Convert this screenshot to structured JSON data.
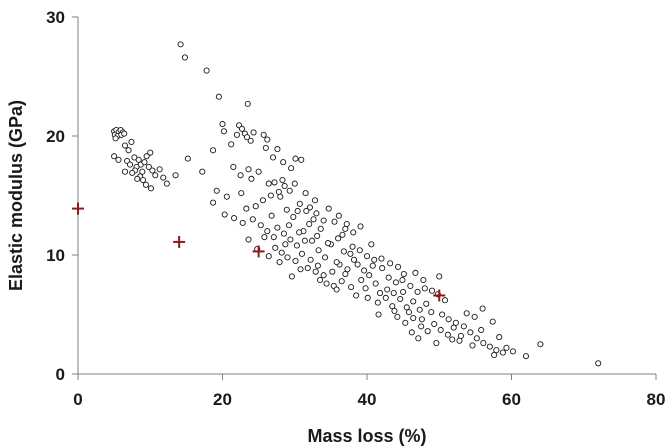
{
  "chart_data": {
    "type": "scatter",
    "title": "",
    "xlabel": "Mass loss (%)",
    "ylabel": "Elastic modulus (GPa)",
    "xlim": [
      0,
      80
    ],
    "ylim": [
      0,
      30
    ],
    "x_ticks": [
      0,
      20,
      40,
      60,
      80
    ],
    "y_ticks": [
      0,
      10,
      20,
      30
    ],
    "x_tick_labels": [
      "0",
      "20",
      "40",
      "60",
      "80"
    ],
    "y_tick_labels": [
      "0",
      "10",
      "20",
      "30"
    ],
    "grid": false,
    "legend": "none",
    "series": [
      {
        "marker": "open-circle",
        "color": "#1a1a1a",
        "points": [
          [
            5,
            20.4
          ],
          [
            5.3,
            20.5
          ],
          [
            5.6,
            20.3
          ],
          [
            5.9,
            20.5
          ],
          [
            6.2,
            20.3
          ],
          [
            5.1,
            20.1
          ],
          [
            5.5,
            20.0
          ],
          [
            6.0,
            20.1
          ],
          [
            6.4,
            20.2
          ],
          [
            5.2,
            19.8
          ],
          [
            5.0,
            18.3
          ],
          [
            5.6,
            18.0
          ],
          [
            6.5,
            19.2
          ],
          [
            7.0,
            18.8
          ],
          [
            7.4,
            19.5
          ],
          [
            6.8,
            17.9
          ],
          [
            7.8,
            18.2
          ],
          [
            8.1,
            17.4
          ],
          [
            8.4,
            18.0
          ],
          [
            8.7,
            17.6
          ],
          [
            8.9,
            17.0
          ],
          [
            9.2,
            17.8
          ],
          [
            9.5,
            18.3
          ],
          [
            7.2,
            17.6
          ],
          [
            7.9,
            17.1
          ],
          [
            8.6,
            16.6
          ],
          [
            9.0,
            16.3
          ],
          [
            9.8,
            17.4
          ],
          [
            10.3,
            17.1
          ],
          [
            10.7,
            16.7
          ],
          [
            11.3,
            17.2
          ],
          [
            11.8,
            16.5
          ],
          [
            12.3,
            16.0
          ],
          [
            9.4,
            15.9
          ],
          [
            10.1,
            15.6
          ],
          [
            6.5,
            17.0
          ],
          [
            7.5,
            16.9
          ],
          [
            8.2,
            16.4
          ],
          [
            13.5,
            16.7
          ],
          [
            10.0,
            18.6
          ],
          [
            14.2,
            27.7
          ],
          [
            14.8,
            26.6
          ],
          [
            17.8,
            25.5
          ],
          [
            19.5,
            23.3
          ],
          [
            20.0,
            21.0
          ],
          [
            20.2,
            20.4
          ],
          [
            23.5,
            22.7
          ],
          [
            15.2,
            18.1
          ],
          [
            17.2,
            17.0
          ],
          [
            18.7,
            18.8
          ],
          [
            21.2,
            19.3
          ],
          [
            22.0,
            20.1
          ],
          [
            22.3,
            20.9
          ],
          [
            22.7,
            20.6
          ],
          [
            23.1,
            20.2
          ],
          [
            23.4,
            19.9
          ],
          [
            23.9,
            19.6
          ],
          [
            24.3,
            20.3
          ],
          [
            25.7,
            20.1
          ],
          [
            26.2,
            19.7
          ],
          [
            27.0,
            18.2
          ],
          [
            27.6,
            18.9
          ],
          [
            26.0,
            19.0
          ],
          [
            28.4,
            17.8
          ],
          [
            30.1,
            18.1
          ],
          [
            30.9,
            18.0
          ],
          [
            29.5,
            17.3
          ],
          [
            21.5,
            17.4
          ],
          [
            22.5,
            16.7
          ],
          [
            23.6,
            17.2
          ],
          [
            19.2,
            15.4
          ],
          [
            20.6,
            14.9
          ],
          [
            18.7,
            14.4
          ],
          [
            20.3,
            13.4
          ],
          [
            21.6,
            13.1
          ],
          [
            22.6,
            15.2
          ],
          [
            24.0,
            16.4
          ],
          [
            25.0,
            17.0
          ],
          [
            26.4,
            16.0
          ],
          [
            27.2,
            16.1
          ],
          [
            27.8,
            15.3
          ],
          [
            26.7,
            15.0
          ],
          [
            25.6,
            14.6
          ],
          [
            24.6,
            14.1
          ],
          [
            23.3,
            13.9
          ],
          [
            22.8,
            12.7
          ],
          [
            24.2,
            13.0
          ],
          [
            25.3,
            12.5
          ],
          [
            26.2,
            12.0
          ],
          [
            27.1,
            11.5
          ],
          [
            28.0,
            14.9
          ],
          [
            28.6,
            15.8
          ],
          [
            29.3,
            15.4
          ],
          [
            30.0,
            16.0
          ],
          [
            28.9,
            13.8
          ],
          [
            29.8,
            13.2
          ],
          [
            30.7,
            14.3
          ],
          [
            31.5,
            15.2
          ],
          [
            32.1,
            14.0
          ],
          [
            33.0,
            13.5
          ],
          [
            27.6,
            12.3
          ],
          [
            28.5,
            11.8
          ],
          [
            29.4,
            11.3
          ],
          [
            30.3,
            10.8
          ],
          [
            31.2,
            12.0
          ],
          [
            32.0,
            12.6
          ],
          [
            33.1,
            11.6
          ],
          [
            34.0,
            12.9
          ],
          [
            34.7,
            13.9
          ],
          [
            35.5,
            12.8
          ],
          [
            28.2,
            10.2
          ],
          [
            29.0,
            9.8
          ],
          [
            30.1,
            9.5
          ],
          [
            31.0,
            10.1
          ],
          [
            32.2,
            9.6
          ],
          [
            33.3,
            10.4
          ],
          [
            34.2,
            9.8
          ],
          [
            35.0,
            10.9
          ],
          [
            36.0,
            11.4
          ],
          [
            37.0,
            12.2
          ],
          [
            31.8,
            8.9
          ],
          [
            32.9,
            8.6
          ],
          [
            34.0,
            8.3
          ],
          [
            35.2,
            8.6
          ],
          [
            36.2,
            9.2
          ],
          [
            37.3,
            8.8
          ],
          [
            38.2,
            9.6
          ],
          [
            39.0,
            10.4
          ],
          [
            40.0,
            9.9
          ],
          [
            40.8,
            9.1
          ],
          [
            33.5,
            7.9
          ],
          [
            35.4,
            7.4
          ],
          [
            36.5,
            7.8
          ],
          [
            37.8,
            7.3
          ],
          [
            39.2,
            7.9
          ],
          [
            40.3,
            8.3
          ],
          [
            41.2,
            7.6
          ],
          [
            42.1,
            8.9
          ],
          [
            43.0,
            8.1
          ],
          [
            44.0,
            7.7
          ],
          [
            38.5,
            6.6
          ],
          [
            40.1,
            6.4
          ],
          [
            41.5,
            6.0
          ],
          [
            42.6,
            6.4
          ],
          [
            43.5,
            5.7
          ],
          [
            44.6,
            6.3
          ],
          [
            45.5,
            5.6
          ],
          [
            46.4,
            6.1
          ],
          [
            47.3,
            5.4
          ],
          [
            48.2,
            5.9
          ],
          [
            42.0,
            9.7
          ],
          [
            43.2,
            9.3
          ],
          [
            44.3,
            9.0
          ],
          [
            45.1,
            8.4
          ],
          [
            46.0,
            7.4
          ],
          [
            47.0,
            6.9
          ],
          [
            48.0,
            7.2
          ],
          [
            49.0,
            7.0
          ],
          [
            49.8,
            6.7
          ],
          [
            50.8,
            6.2
          ],
          [
            44.2,
            4.8
          ],
          [
            45.3,
            4.3
          ],
          [
            46.4,
            4.7
          ],
          [
            47.5,
            4.0
          ],
          [
            48.4,
            3.6
          ],
          [
            49.3,
            4.2
          ],
          [
            50.2,
            3.7
          ],
          [
            51.2,
            3.3
          ],
          [
            52.0,
            3.9
          ],
          [
            53.0,
            3.2
          ],
          [
            50.4,
            5.0
          ],
          [
            51.3,
            4.6
          ],
          [
            52.3,
            4.3
          ],
          [
            53.4,
            4.0
          ],
          [
            54.3,
            3.5
          ],
          [
            55.2,
            3.0
          ],
          [
            56.1,
            2.6
          ],
          [
            57.0,
            2.3
          ],
          [
            57.9,
            2.0
          ],
          [
            58.8,
            1.8
          ],
          [
            53.8,
            5.1
          ],
          [
            54.9,
            4.8
          ],
          [
            56.0,
            5.5
          ],
          [
            57.4,
            4.4
          ],
          [
            58.3,
            3.1
          ],
          [
            59.3,
            2.2
          ],
          [
            60.2,
            1.9
          ],
          [
            62.0,
            1.5
          ],
          [
            64.0,
            2.5
          ],
          [
            72.0,
            0.9
          ],
          [
            36.1,
            13.3
          ],
          [
            37.2,
            12.6
          ],
          [
            38.1,
            11.9
          ],
          [
            39.1,
            12.4
          ],
          [
            38.0,
            10.7
          ],
          [
            36.8,
            10.3
          ],
          [
            34.6,
            11.0
          ],
          [
            33.6,
            12.2
          ],
          [
            32.6,
            13.0
          ],
          [
            31.6,
            13.7
          ],
          [
            29.2,
            12.5
          ],
          [
            30.6,
            11.9
          ],
          [
            31.4,
            11.2
          ],
          [
            28.7,
            10.9
          ],
          [
            27.3,
            10.6
          ],
          [
            26.4,
            9.9
          ],
          [
            27.9,
            9.4
          ],
          [
            32.4,
            11.2
          ],
          [
            35.8,
            9.4
          ],
          [
            37.7,
            10.1
          ],
          [
            39.6,
            8.7
          ],
          [
            41.0,
            9.6
          ],
          [
            42.8,
            7.1
          ],
          [
            44.9,
            7.9
          ],
          [
            46.7,
            8.5
          ],
          [
            47.8,
            7.9
          ],
          [
            45.8,
            5.2
          ],
          [
            43.8,
            5.3
          ],
          [
            41.8,
            6.8
          ],
          [
            39.8,
            7.2
          ],
          [
            37.0,
            8.4
          ],
          [
            35.8,
            7.1
          ],
          [
            34.4,
            7.6
          ],
          [
            33.2,
            9.1
          ],
          [
            30.8,
            8.8
          ],
          [
            29.6,
            8.2
          ],
          [
            41.6,
            5.0
          ],
          [
            48.9,
            5.2
          ],
          [
            47.6,
            4.6
          ],
          [
            46.2,
            3.5
          ],
          [
            26.8,
            13.3
          ],
          [
            25.8,
            11.5
          ],
          [
            24.8,
            10.5
          ],
          [
            23.6,
            11.3
          ],
          [
            36.6,
            11.7
          ],
          [
            38.7,
            9.2
          ],
          [
            40.6,
            10.9
          ],
          [
            43.7,
            6.8
          ],
          [
            45.0,
            6.9
          ],
          [
            52.8,
            2.8
          ],
          [
            55.8,
            3.7
          ],
          [
            57.6,
            1.6
          ],
          [
            54.6,
            2.4
          ],
          [
            51.8,
            2.9
          ],
          [
            49.6,
            2.6
          ],
          [
            47.1,
            3.0
          ],
          [
            50.0,
            8.2
          ],
          [
            32.8,
            14.6
          ],
          [
            30.4,
            13.7
          ],
          [
            28.3,
            16.3
          ]
        ]
      },
      {
        "marker": "plus",
        "color": "#8b1a1a",
        "points": [
          [
            0,
            13.9
          ],
          [
            14,
            11.1
          ],
          [
            25,
            10.3
          ],
          [
            50,
            6.6
          ]
        ]
      }
    ]
  }
}
